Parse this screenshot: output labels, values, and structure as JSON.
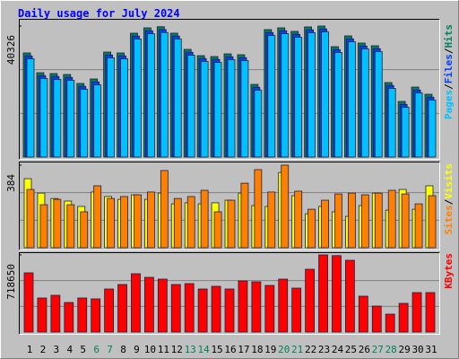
{
  "title": "Daily usage for July 2024",
  "legend_separator": "/",
  "chart_data": [
    {
      "type": "bar",
      "ylim": [
        0,
        40326
      ],
      "yticks": [
        40326
      ],
      "series": [
        {
          "name": "Hits",
          "color": "#00805c",
          "values": [
            32040,
            25960,
            25690,
            25410,
            22650,
            24030,
            32320,
            32040,
            38120,
            39770,
            40120,
            38120,
            33140,
            31210,
            30930,
            31760,
            31490,
            22370,
            39220,
            39770,
            38670,
            40050,
            40326,
            33970,
            37290,
            35080,
            34250,
            22930,
            17120,
            21540,
            19330
          ]
        },
        {
          "name": "Files",
          "color": "#0040ff",
          "values": [
            31140,
            25060,
            24790,
            24510,
            21750,
            23130,
            31420,
            31140,
            37220,
            38870,
            39220,
            37220,
            32240,
            30310,
            30030,
            30860,
            30590,
            21470,
            38320,
            38870,
            37770,
            39150,
            39430,
            33070,
            36390,
            34180,
            33350,
            22030,
            16220,
            20640,
            18430
          ]
        },
        {
          "name": "Pages",
          "color": "#00c0ff",
          "values": [
            30240,
            24160,
            23890,
            23610,
            20850,
            22230,
            30520,
            30240,
            36320,
            37970,
            38320,
            36320,
            31340,
            29410,
            29130,
            29960,
            29690,
            20570,
            37420,
            37970,
            36870,
            38250,
            38530,
            32170,
            35490,
            33280,
            32450,
            21130,
            15320,
            19740,
            17530
          ]
        }
      ]
    },
    {
      "type": "bar",
      "ylim": [
        0,
        384
      ],
      "yticks": [
        384
      ],
      "series": [
        {
          "name": "Visits",
          "color": "#ffff00",
          "values": [
            321,
            254,
            229,
            217,
            192,
            259,
            238,
            225,
            246,
            225,
            254,
            204,
            209,
            204,
            209,
            221,
            254,
            196,
            192,
            350,
            242,
            158,
            192,
            167,
            146,
            196,
            254,
            175,
            271,
            179,
            288
          ]
        },
        {
          "name": "Sites",
          "color": "#ff8000",
          "values": [
            271,
            200,
            225,
            200,
            167,
            288,
            229,
            238,
            246,
            259,
            359,
            229,
            238,
            267,
            167,
            221,
            300,
            363,
            259,
            384,
            263,
            179,
            221,
            250,
            254,
            246,
            254,
            267,
            250,
            204,
            242
          ]
        }
      ]
    },
    {
      "type": "bar",
      "ylim": [
        0,
        718650
      ],
      "yticks": [
        718650
      ],
      "categories": [
        "1",
        "2",
        "3",
        "4",
        "5",
        "6",
        "7",
        "8",
        "9",
        "10",
        "11",
        "12",
        "13",
        "14",
        "15",
        "16",
        "17",
        "18",
        "19",
        "20",
        "21",
        "22",
        "23",
        "24",
        "25",
        "26",
        "27",
        "28",
        "29",
        "30",
        "31"
      ],
      "category_colors": [
        "#000000",
        "#000000",
        "#000000",
        "#000000",
        "#000000",
        "#00805c",
        "#00805c",
        "#000000",
        "#000000",
        "#000000",
        "#000000",
        "#000000",
        "#00805c",
        "#00805c",
        "#000000",
        "#000000",
        "#000000",
        "#000000",
        "#000000",
        "#00805c",
        "#00805c",
        "#000000",
        "#000000",
        "#000000",
        "#000000",
        "#000000",
        "#00805c",
        "#00805c",
        "#000000",
        "#000000",
        "#000000"
      ],
      "series": [
        {
          "name": "KBytes",
          "color": "#ff0000",
          "values": [
            551500,
            317500,
            342600,
            275700,
            317500,
            309200,
            401100,
            442900,
            543100,
            509700,
            493000,
            442900,
            451200,
            401100,
            426200,
            401100,
            476300,
            467900,
            434500,
            493000,
            409400,
            584900,
            718650,
            712000,
            668500,
            334200,
            242300,
            167100,
            267400,
            367700,
            367700
          ]
        }
      ]
    }
  ]
}
